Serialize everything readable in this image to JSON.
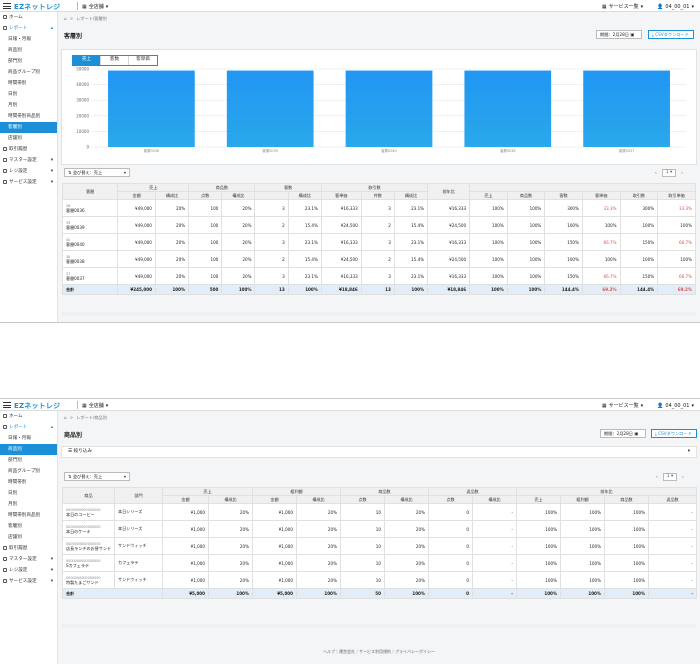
{
  "header": {
    "logo": "EZネットレジ",
    "store": "全店舗",
    "service": "サービス一覧",
    "user": "04_00_01"
  },
  "sidebar1": [
    {
      "label": "ホーム",
      "type": "top",
      "icon": "home-icon"
    },
    {
      "label": "レポート",
      "type": "top blue",
      "icon": "report-icon",
      "chev": "^"
    },
    {
      "label": "日報・月報",
      "type": "sub"
    },
    {
      "label": "商品別",
      "type": "sub"
    },
    {
      "label": "部門別",
      "type": "sub"
    },
    {
      "label": "商品グループ別",
      "type": "sub"
    },
    {
      "label": "時間帯別",
      "type": "sub"
    },
    {
      "label": "日別",
      "type": "sub"
    },
    {
      "label": "月別",
      "type": "sub"
    },
    {
      "label": "時間帯別商品別",
      "type": "sub"
    },
    {
      "label": "客層別",
      "type": "sub active"
    },
    {
      "label": "店舗別",
      "type": "sub"
    },
    {
      "label": "取引履歴",
      "type": "top",
      "icon": "history-icon"
    },
    {
      "label": "マスター設定",
      "type": "top",
      "icon": "master-icon",
      "chev": "v"
    },
    {
      "label": "レジ設定",
      "type": "top",
      "icon": "register-icon",
      "chev": "v"
    },
    {
      "label": "サービス設定",
      "type": "top",
      "icon": "service-icon",
      "chev": "v"
    }
  ],
  "sidebar2": [
    {
      "label": "ホーム",
      "type": "top",
      "icon": "home-icon"
    },
    {
      "label": "レポート",
      "type": "top blue",
      "icon": "report-icon",
      "chev": "^"
    },
    {
      "label": "日報・月報",
      "type": "sub"
    },
    {
      "label": "商品別",
      "type": "sub active"
    },
    {
      "label": "部門別",
      "type": "sub"
    },
    {
      "label": "商品グループ別",
      "type": "sub"
    },
    {
      "label": "時間帯別",
      "type": "sub"
    },
    {
      "label": "日別",
      "type": "sub"
    },
    {
      "label": "月別",
      "type": "sub"
    },
    {
      "label": "時間帯別商品別",
      "type": "sub"
    },
    {
      "label": "客層別",
      "type": "sub"
    },
    {
      "label": "店舗別",
      "type": "sub"
    },
    {
      "label": "取引履歴",
      "type": "top",
      "icon": "history-icon"
    },
    {
      "label": "マスター設定",
      "type": "top",
      "icon": "master-icon",
      "chev": "v"
    },
    {
      "label": "レジ設定",
      "type": "top",
      "icon": "register-icon",
      "chev": "v"
    },
    {
      "label": "サービス設定",
      "type": "top",
      "icon": "service-icon",
      "chev": "v"
    }
  ],
  "s1": {
    "breadcrumb": "レポート/客層別",
    "title": "客層別",
    "period": "期間：2月28日",
    "csv": "CSVダウンロード",
    "tabs": [
      "売上",
      "客数",
      "客単価"
    ],
    "sort": "並び替え：売上",
    "page": "1",
    "headers": {
      "top": [
        "客層",
        "売上",
        "",
        "商品数",
        "",
        "客数",
        "",
        "取引数",
        "",
        "取引単価",
        "前年比",
        "",
        "",
        "",
        "",
        "",
        ""
      ],
      "sub": [
        "",
        "金額",
        "構成比",
        "点数",
        "構成比",
        "",
        "構成比",
        "客単価",
        "件数",
        "構成比",
        "",
        "売上",
        "商品数",
        "客数",
        "客単価",
        "取引数",
        "取引単価"
      ]
    },
    "rows": [
      {
        "code": "36",
        "name": "客層0036",
        "c": [
          "¥49,000",
          "20%",
          "100",
          "20%",
          "3",
          "23.1%",
          "¥16,333",
          "3",
          "23.1%",
          "¥16,333",
          "100%",
          "100%",
          "300%",
          "33.3%",
          "300%",
          "33.3%"
        ],
        "neg": [
          13,
          15
        ]
      },
      {
        "code": "39",
        "name": "客層0039",
        "c": [
          "¥49,000",
          "20%",
          "100",
          "20%",
          "2",
          "15.4%",
          "¥24,500",
          "2",
          "15.4%",
          "¥24,500",
          "100%",
          "100%",
          "100%",
          "100%",
          "100%",
          "100%"
        ],
        "neg": []
      },
      {
        "code": "40",
        "name": "客層0040",
        "c": [
          "¥49,000",
          "20%",
          "100",
          "20%",
          "3",
          "23.1%",
          "¥16,333",
          "3",
          "23.1%",
          "¥16,333",
          "100%",
          "100%",
          "150%",
          "66.7%",
          "150%",
          "66.7%"
        ],
        "neg": [
          13,
          15
        ]
      },
      {
        "code": "38",
        "name": "客層0038",
        "c": [
          "¥49,000",
          "20%",
          "100",
          "20%",
          "2",
          "15.4%",
          "¥24,500",
          "2",
          "15.4%",
          "¥24,500",
          "100%",
          "100%",
          "100%",
          "100%",
          "100%",
          "100%"
        ],
        "neg": []
      },
      {
        "code": "37",
        "name": "客層0037",
        "c": [
          "¥49,000",
          "20%",
          "100",
          "20%",
          "3",
          "23.1%",
          "¥16,333",
          "3",
          "23.1%",
          "¥16,333",
          "100%",
          "100%",
          "150%",
          "66.7%",
          "150%",
          "66.7%"
        ],
        "neg": [
          13,
          15
        ]
      }
    ],
    "total": {
      "label": "合計",
      "c": [
        "¥245,000",
        "100%",
        "500",
        "100%",
        "13",
        "100%",
        "¥18,846",
        "13",
        "100%",
        "¥18,846",
        "100%",
        "100%",
        "144.4%",
        "69.2%",
        "144.4%",
        "69.2%"
      ],
      "neg": [
        13,
        15
      ]
    }
  },
  "chart_data": {
    "type": "bar",
    "categories": [
      "客層0036",
      "客層0039",
      "客層0040",
      "客層0038",
      "客層0037"
    ],
    "values": [
      49000,
      49000,
      49000,
      49000,
      49000
    ],
    "yticks": [
      "50000",
      "40000",
      "30000",
      "20000",
      "10000",
      "0"
    ],
    "ylim": [
      0,
      50000
    ],
    "color_top": "#2196f3",
    "color_bottom": "#29a8ea",
    "grid": true,
    "title": "",
    "xlabel": "",
    "ylabel": ""
  },
  "s2": {
    "breadcrumb": "レポート/商品別",
    "title": "商品別",
    "period": "期間：2月28日",
    "csv": "CSVダウンロード",
    "filter": "絞り込み",
    "sort": "並び替え：売上",
    "page": "1",
    "headers": {
      "top": [
        "商品",
        "部門",
        "売上",
        "",
        "粗利額",
        "",
        "商品数",
        "",
        "返品数",
        "",
        "前年比",
        "",
        "",
        ""
      ],
      "sub": [
        "",
        "",
        "金額",
        "構成比",
        "金額",
        "構成比",
        "点数",
        "構成比",
        "点数",
        "構成比",
        "売上",
        "粗利額",
        "商品数",
        "返品数"
      ]
    },
    "rows": [
      {
        "code": "0000000000000000",
        "name": "本日のコーヒー",
        "dept": "本日シリーズ",
        "c": [
          "¥1,000",
          "20%",
          "¥1,000",
          "20%",
          "10",
          "20%",
          "0",
          "-",
          "100%",
          "100%",
          "100%",
          "-"
        ]
      },
      {
        "code": "0000000000000000",
        "name": "本日のケーキ",
        "dept": "本日シリーズ",
        "c": [
          "¥1,000",
          "20%",
          "¥1,000",
          "20%",
          "10",
          "20%",
          "0",
          "-",
          "100%",
          "100%",
          "100%",
          "-"
        ]
      },
      {
        "code": "0000000000000000",
        "name": "店長ランチのお昼サンド",
        "dept": "サンドウィッチ",
        "c": [
          "¥1,000",
          "20%",
          "¥1,000",
          "20%",
          "10",
          "20%",
          "0",
          "-",
          "100%",
          "100%",
          "100%",
          "-"
        ]
      },
      {
        "code": "0000000000000000",
        "name": "Sカフェラテ",
        "dept": "カフェラテ",
        "c": [
          "¥1,000",
          "20%",
          "¥1,000",
          "20%",
          "10",
          "20%",
          "0",
          "-",
          "100%",
          "100%",
          "100%",
          "-"
        ]
      },
      {
        "code": "0000000000000000",
        "name": "特製たまごサンド",
        "dept": "サンドウィッチ",
        "c": [
          "¥1,000",
          "20%",
          "¥1,000",
          "20%",
          "10",
          "20%",
          "0",
          "-",
          "100%",
          "100%",
          "100%",
          "-"
        ]
      }
    ],
    "total": {
      "label": "合計",
      "c": [
        "¥5,000",
        "100%",
        "¥5,000",
        "100%",
        "50",
        "100%",
        "0",
        "-",
        "100%",
        "100%",
        "100%",
        "-"
      ]
    },
    "footer": "ヘルプ｜運営会社｜サービス利用規約｜プライバシーポリシー"
  }
}
